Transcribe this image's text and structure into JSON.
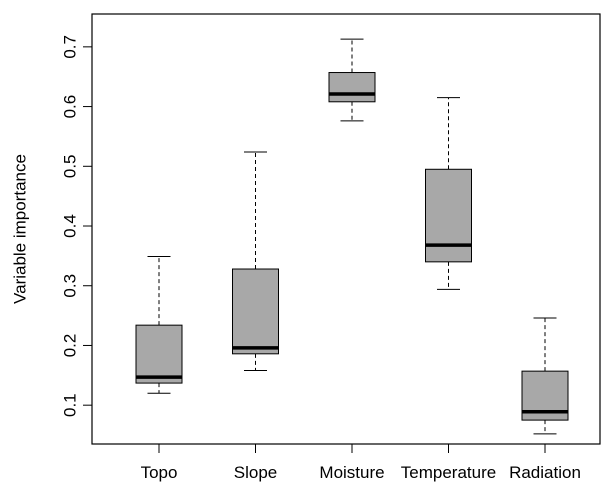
{
  "chart_data": {
    "type": "boxplot",
    "title": "",
    "xlabel": "",
    "ylabel": "Variable importance",
    "ylim": [
      0.035,
      0.755
    ],
    "yticks": [
      0.1,
      0.2,
      0.3,
      0.4,
      0.5,
      0.6,
      0.7
    ],
    "ytick_labels": [
      "0.1",
      "0.2",
      "0.3",
      "0.4",
      "0.5",
      "0.6",
      "0.7"
    ],
    "grid": false,
    "legend": "none",
    "colors": {
      "box_fill": "#a8a8a8",
      "outline": "#000000",
      "median": "#000000",
      "whisker": "#000000"
    },
    "categories": [
      "Topo",
      "Slope",
      "Moisture",
      "Temperature",
      "Radiation"
    ],
    "boxes": [
      {
        "category": "Topo",
        "min": 0.12,
        "q1": 0.137,
        "median": 0.147,
        "q3": 0.234,
        "max": 0.349
      },
      {
        "category": "Slope",
        "min": 0.158,
        "q1": 0.186,
        "median": 0.196,
        "q3": 0.328,
        "max": 0.524
      },
      {
        "category": "Moisture",
        "min": 0.576,
        "q1": 0.608,
        "median": 0.621,
        "q3": 0.657,
        "max": 0.713
      },
      {
        "category": "Temperature",
        "min": 0.294,
        "q1": 0.34,
        "median": 0.368,
        "q3": 0.495,
        "max": 0.615
      },
      {
        "category": "Radiation",
        "min": 0.052,
        "q1": 0.075,
        "median": 0.089,
        "q3": 0.157,
        "max": 0.246
      }
    ]
  }
}
